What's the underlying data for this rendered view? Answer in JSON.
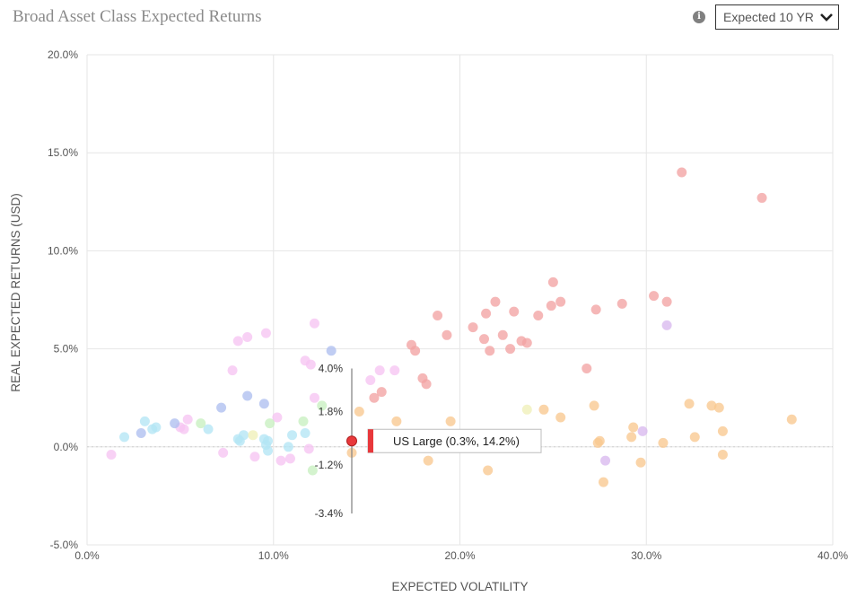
{
  "header": {
    "title": "Broad Asset Class Expected Returns",
    "info_icon": "info-icon",
    "horizon_select": {
      "selected": "Expected 10 YR"
    }
  },
  "chart_data": {
    "type": "scatter",
    "title": "Broad Asset Class Expected Returns",
    "xlabel": "EXPECTED VOLATILITY",
    "ylabel": "REAL EXPECTED RETURNS (USD)",
    "xlim": [
      0,
      40
    ],
    "ylim": [
      -5,
      20
    ],
    "x_ticks": [
      "0.0%",
      "10.0%",
      "20.0%",
      "30.0%",
      "40.0%"
    ],
    "y_ticks": [
      "20.0%",
      "15.0%",
      "10.0%",
      "5.0%",
      "0.0%",
      "-5.0%"
    ],
    "grid": true,
    "baseline_y": 0,
    "series": [
      {
        "color": "#f2a3a3",
        "points": [
          [
            31.9,
            14.0
          ],
          [
            36.2,
            12.7
          ],
          [
            25.0,
            8.4
          ],
          [
            30.4,
            7.7
          ],
          [
            31.1,
            7.4
          ],
          [
            21.9,
            7.4
          ],
          [
            25.4,
            7.4
          ],
          [
            24.9,
            7.2
          ],
          [
            28.7,
            7.3
          ],
          [
            27.3,
            7.0
          ],
          [
            22.9,
            6.9
          ],
          [
            21.4,
            6.8
          ],
          [
            24.2,
            6.7
          ],
          [
            18.8,
            6.7
          ],
          [
            20.7,
            6.1
          ],
          [
            19.3,
            5.7
          ],
          [
            22.3,
            5.7
          ],
          [
            21.3,
            5.5
          ],
          [
            23.3,
            5.4
          ],
          [
            23.6,
            5.3
          ],
          [
            17.4,
            5.2
          ],
          [
            17.6,
            4.9
          ],
          [
            22.7,
            5.0
          ],
          [
            21.6,
            4.9
          ],
          [
            26.8,
            4.0
          ],
          [
            18.0,
            3.5
          ],
          [
            18.2,
            3.2
          ],
          [
            15.8,
            2.8
          ],
          [
            15.4,
            2.5
          ]
        ]
      },
      {
        "color": "#f9c890",
        "points": [
          [
            37.8,
            1.4
          ],
          [
            32.3,
            2.2
          ],
          [
            33.5,
            2.1
          ],
          [
            33.9,
            2.0
          ],
          [
            27.2,
            2.1
          ],
          [
            24.5,
            1.9
          ],
          [
            25.4,
            1.5
          ],
          [
            29.3,
            1.0
          ],
          [
            34.1,
            0.8
          ],
          [
            32.6,
            0.5
          ],
          [
            29.2,
            0.5
          ],
          [
            27.5,
            0.3
          ],
          [
            27.4,
            0.2
          ],
          [
            30.9,
            0.2
          ],
          [
            34.1,
            -0.4
          ],
          [
            29.7,
            -0.8
          ],
          [
            27.7,
            -1.8
          ],
          [
            21.5,
            -1.2
          ],
          [
            18.3,
            -0.7
          ],
          [
            19.5,
            1.3
          ],
          [
            16.6,
            1.3
          ],
          [
            14.6,
            1.8
          ],
          [
            14.2,
            -0.3
          ]
        ]
      },
      {
        "color": "#f6c4f2",
        "points": [
          [
            9.6,
            5.8
          ],
          [
            8.1,
            5.4
          ],
          [
            8.6,
            5.6
          ],
          [
            12.2,
            6.3
          ],
          [
            7.8,
            3.9
          ],
          [
            11.7,
            4.4
          ],
          [
            12.0,
            4.2
          ],
          [
            15.7,
            3.9
          ],
          [
            16.5,
            3.9
          ],
          [
            15.2,
            3.4
          ],
          [
            12.2,
            2.5
          ],
          [
            10.2,
            1.5
          ],
          [
            5.4,
            1.4
          ],
          [
            5.2,
            0.9
          ],
          [
            5.0,
            1.0
          ],
          [
            1.3,
            -0.4
          ],
          [
            7.3,
            -0.3
          ],
          [
            9.0,
            -0.5
          ],
          [
            10.4,
            -0.7
          ],
          [
            10.9,
            -0.6
          ],
          [
            11.9,
            -0.1
          ]
        ]
      },
      {
        "color": "#b3e5f5",
        "points": [
          [
            2.0,
            0.5
          ],
          [
            3.1,
            1.3
          ],
          [
            3.5,
            0.9
          ],
          [
            3.7,
            1.0
          ],
          [
            6.5,
            0.9
          ],
          [
            8.1,
            0.4
          ],
          [
            8.2,
            0.3
          ],
          [
            8.4,
            0.6
          ],
          [
            9.7,
            0.3
          ],
          [
            9.7,
            -0.2
          ],
          [
            11.0,
            0.6
          ],
          [
            10.8,
            0.0
          ],
          [
            11.7,
            0.7
          ],
          [
            9.5,
            0.4
          ],
          [
            9.6,
            0.1
          ]
        ]
      },
      {
        "color": "#aebff0",
        "points": [
          [
            2.9,
            0.7
          ],
          [
            4.7,
            1.2
          ],
          [
            7.2,
            2.0
          ],
          [
            8.6,
            2.6
          ],
          [
            9.5,
            2.2
          ],
          [
            13.1,
            4.9
          ]
        ]
      },
      {
        "color": "#c8f0c0",
        "points": [
          [
            6.1,
            1.2
          ],
          [
            9.8,
            1.2
          ],
          [
            11.6,
            1.3
          ],
          [
            12.1,
            -1.2
          ],
          [
            12.6,
            2.1
          ]
        ]
      },
      {
        "color": "#d8b8ee",
        "points": [
          [
            31.1,
            6.2
          ],
          [
            27.8,
            -0.7
          ],
          [
            29.8,
            0.8
          ]
        ]
      },
      {
        "color": "#f0f0b8",
        "points": [
          [
            23.6,
            1.9
          ],
          [
            8.9,
            0.6
          ]
        ]
      }
    ],
    "highlight": {
      "x": 14.2,
      "y": 0.3,
      "range_high": 4.0,
      "range_mid": 1.8,
      "range_low": -3.4,
      "range_labels": [
        "4.0%",
        "1.8%",
        "-1.2%",
        "-3.4%"
      ],
      "color": "#e8383b",
      "tooltip": "US Large (0.3%, 14.2%)"
    }
  }
}
